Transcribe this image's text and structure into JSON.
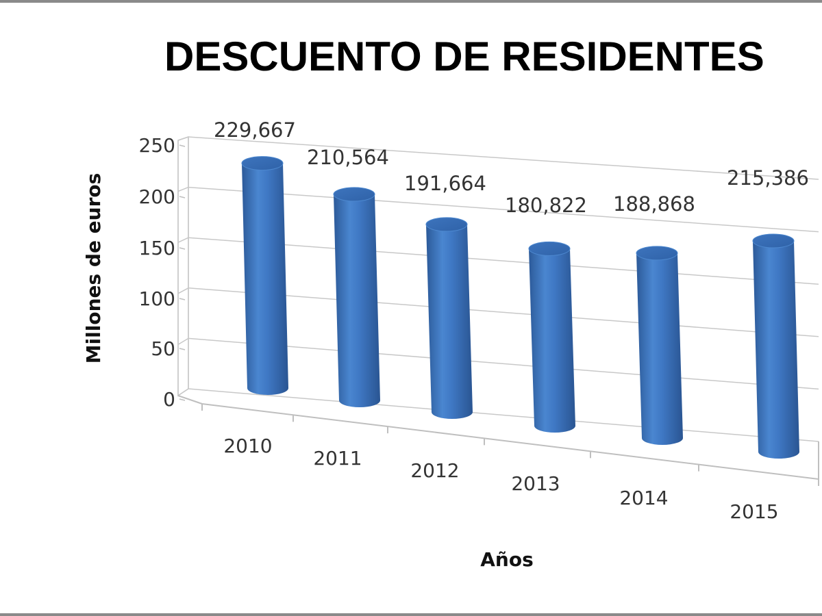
{
  "chart_data": {
    "type": "bar",
    "title": "DESCUENTO DE RESIDENTES",
    "xlabel": "Años",
    "ylabel": "Millones de euros",
    "categories": [
      "2010",
      "2011",
      "2012",
      "2013",
      "2014",
      "2015"
    ],
    "values": [
      229.667,
      210.564,
      191.664,
      180.822,
      188.868,
      215.386
    ],
    "data_labels": [
      "229,667",
      "210,564",
      "191,664",
      "180,822",
      "188,868",
      "215,386"
    ],
    "yticks": [
      "0",
      "50",
      "100",
      "150",
      "200",
      "250"
    ],
    "ylim": [
      0,
      250
    ],
    "grid": true,
    "bar_color": "#3f78c4",
    "style": "3d-cylinder"
  }
}
